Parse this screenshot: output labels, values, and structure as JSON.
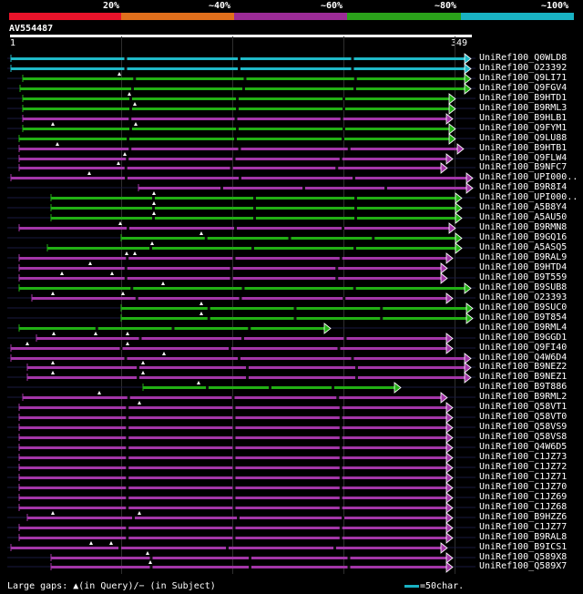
{
  "query": {
    "name": "AV554487",
    "start": "1",
    "end": "349"
  },
  "scale_labels": [
    "20%",
    "~40%",
    "~60%",
    "~80%",
    "~100%"
  ],
  "colors": {
    "red": "#e8132a",
    "orange": "#e06f1c",
    "purple": "#9b2b96",
    "green": "#2aa11a",
    "cyan": "#19b2c3",
    "green_bar": "#22b014",
    "purple_bar": "#a336a8",
    "cyan_bar": "#1fb9c7"
  },
  "hits": [
    {
      "label": "UniRef100_Q0WLD8",
      "color": "cyan_bar"
    },
    {
      "label": "UniRef100_O23392",
      "color": "cyan_bar"
    },
    {
      "label": "UniRef100_Q9LI71",
      "color": "green_bar"
    },
    {
      "label": "UniRef100_Q9FGV4",
      "color": "green_bar"
    },
    {
      "label": "UniRef100_B9HTD1",
      "color": "green_bar"
    },
    {
      "label": "UniRef100_B9RML3",
      "color": "green_bar"
    },
    {
      "label": "UniRef100_B9HLB1",
      "color": "purple_bar"
    },
    {
      "label": "UniRef100_Q9FYM1",
      "color": "green_bar"
    },
    {
      "label": "UniRef100_Q9LU88",
      "color": "green_bar"
    },
    {
      "label": "UniRef100_B9HTB1",
      "color": "purple_bar"
    },
    {
      "label": "UniRef100_Q9FLW4",
      "color": "purple_bar"
    },
    {
      "label": "UniRef100_B9NFC7",
      "color": "purple_bar"
    },
    {
      "label": "UniRef100_UPI000..",
      "color": "purple_bar"
    },
    {
      "label": "UniRef100_B9R8I4",
      "color": "purple_bar"
    },
    {
      "label": "UniRef100_UPI000..",
      "color": "green_bar"
    },
    {
      "label": "UniRef100_A5B8Y4",
      "color": "green_bar"
    },
    {
      "label": "UniRef100_A5AU50",
      "color": "green_bar"
    },
    {
      "label": "UniRef100_B9RMN8",
      "color": "purple_bar"
    },
    {
      "label": "UniRef100_B9GQ16",
      "color": "green_bar"
    },
    {
      "label": "UniRef100_A5ASQ5",
      "color": "green_bar"
    },
    {
      "label": "UniRef100_B9RAL9",
      "color": "purple_bar"
    },
    {
      "label": "UniRef100_B9HTD4",
      "color": "purple_bar"
    },
    {
      "label": "UniRef100_B9T559",
      "color": "purple_bar"
    },
    {
      "label": "UniRef100_B9SUB8",
      "color": "green_bar"
    },
    {
      "label": "UniRef100_O23393",
      "color": "purple_bar"
    },
    {
      "label": "UniRef100_B9SUC0",
      "color": "green_bar"
    },
    {
      "label": "UniRef100_B9T854",
      "color": "green_bar"
    },
    {
      "label": "UniRef100_B9RML4",
      "color": "green_bar"
    },
    {
      "label": "UniRef100_B9GGD1",
      "color": "purple_bar"
    },
    {
      "label": "UniRef100_Q9FI40",
      "color": "purple_bar"
    },
    {
      "label": "UniRef100_Q4W6D4",
      "color": "purple_bar"
    },
    {
      "label": "UniRef100_B9NEZ2",
      "color": "purple_bar"
    },
    {
      "label": "UniRef100_B9NEZ1",
      "color": "purple_bar"
    },
    {
      "label": "UniRef100_B9T886",
      "color": "green_bar"
    },
    {
      "label": "UniRef100_B9RML2",
      "color": "purple_bar"
    },
    {
      "label": "UniRef100_Q58VT1",
      "color": "purple_bar"
    },
    {
      "label": "UniRef100_Q58VT0",
      "color": "purple_bar"
    },
    {
      "label": "UniRef100_Q58VS9",
      "color": "purple_bar"
    },
    {
      "label": "UniRef100_Q58VS8",
      "color": "purple_bar"
    },
    {
      "label": "UniRef100_Q4W6D5",
      "color": "purple_bar"
    },
    {
      "label": "UniRef100_C1JZ73",
      "color": "purple_bar"
    },
    {
      "label": "UniRef100_C1JZ72",
      "color": "purple_bar"
    },
    {
      "label": "UniRef100_C1JZ71",
      "color": "purple_bar"
    },
    {
      "label": "UniRef100_C1JZ70",
      "color": "purple_bar"
    },
    {
      "label": "UniRef100_C1JZ69",
      "color": "purple_bar"
    },
    {
      "label": "UniRef100_C1JZ68",
      "color": "purple_bar"
    },
    {
      "label": "UniRef100_B9HZZ6",
      "color": "purple_bar"
    },
    {
      "label": "UniRef100_C1JZ77",
      "color": "purple_bar"
    },
    {
      "label": "UniRef100_B9RAL8",
      "color": "purple_bar"
    },
    {
      "label": "UniRef100_B9ICS1",
      "color": "purple_bar"
    },
    {
      "label": "UniRef100_Q589X8",
      "color": "purple_bar"
    },
    {
      "label": "UniRef100_Q589X7",
      "color": "purple_bar"
    }
  ],
  "footer": {
    "text": "Large gaps: ▲(in Query)/− (in Subject)",
    "scale_text": "=50char."
  }
}
